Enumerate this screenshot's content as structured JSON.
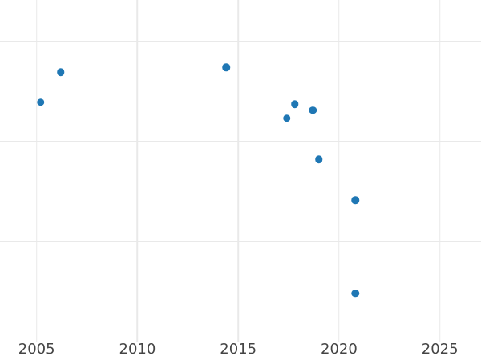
{
  "chart_data": {
    "type": "scatter",
    "title": "",
    "xlabel": "",
    "ylabel": "",
    "x_ticks": [
      2005,
      2010,
      2015,
      2020,
      2025
    ],
    "x_tick_labels": [
      "2005",
      "2010",
      "2015",
      "2020",
      "2025"
    ],
    "xlim": [
      2003.2,
      2027.0
    ],
    "ylim": [
      0,
      3.41
    ],
    "y_gridline_values": [
      1,
      2,
      3
    ],
    "y_tick_labels_visible": false,
    "y_units_note": "y-axis tick labels are not visible in the screenshot (chart cropped at left); y values are expressed in gridline units: bottom of plot area = 0, one unit per gridline spacing",
    "grid": true,
    "legend": false,
    "series": [
      {
        "name": "points",
        "marker": "circle",
        "marker_color": "#1f77b4",
        "points": [
          {
            "x": 2005.2,
            "y": 2.39
          },
          {
            "x": 2006.2,
            "y": 2.69
          },
          {
            "x": 2014.4,
            "y": 2.74
          },
          {
            "x": 2017.4,
            "y": 2.23
          },
          {
            "x": 2017.8,
            "y": 2.37
          },
          {
            "x": 2018.7,
            "y": 2.31
          },
          {
            "x": 2019.0,
            "y": 1.82
          },
          {
            "x": 2020.8,
            "y": 1.41
          },
          {
            "x": 2020.8,
            "y": 0.48
          }
        ]
      }
    ],
    "colors": {
      "marker": "#1f77b4",
      "gridline": "#e9e9e9",
      "tick_label": "#444444",
      "background": "#ffffff"
    }
  }
}
